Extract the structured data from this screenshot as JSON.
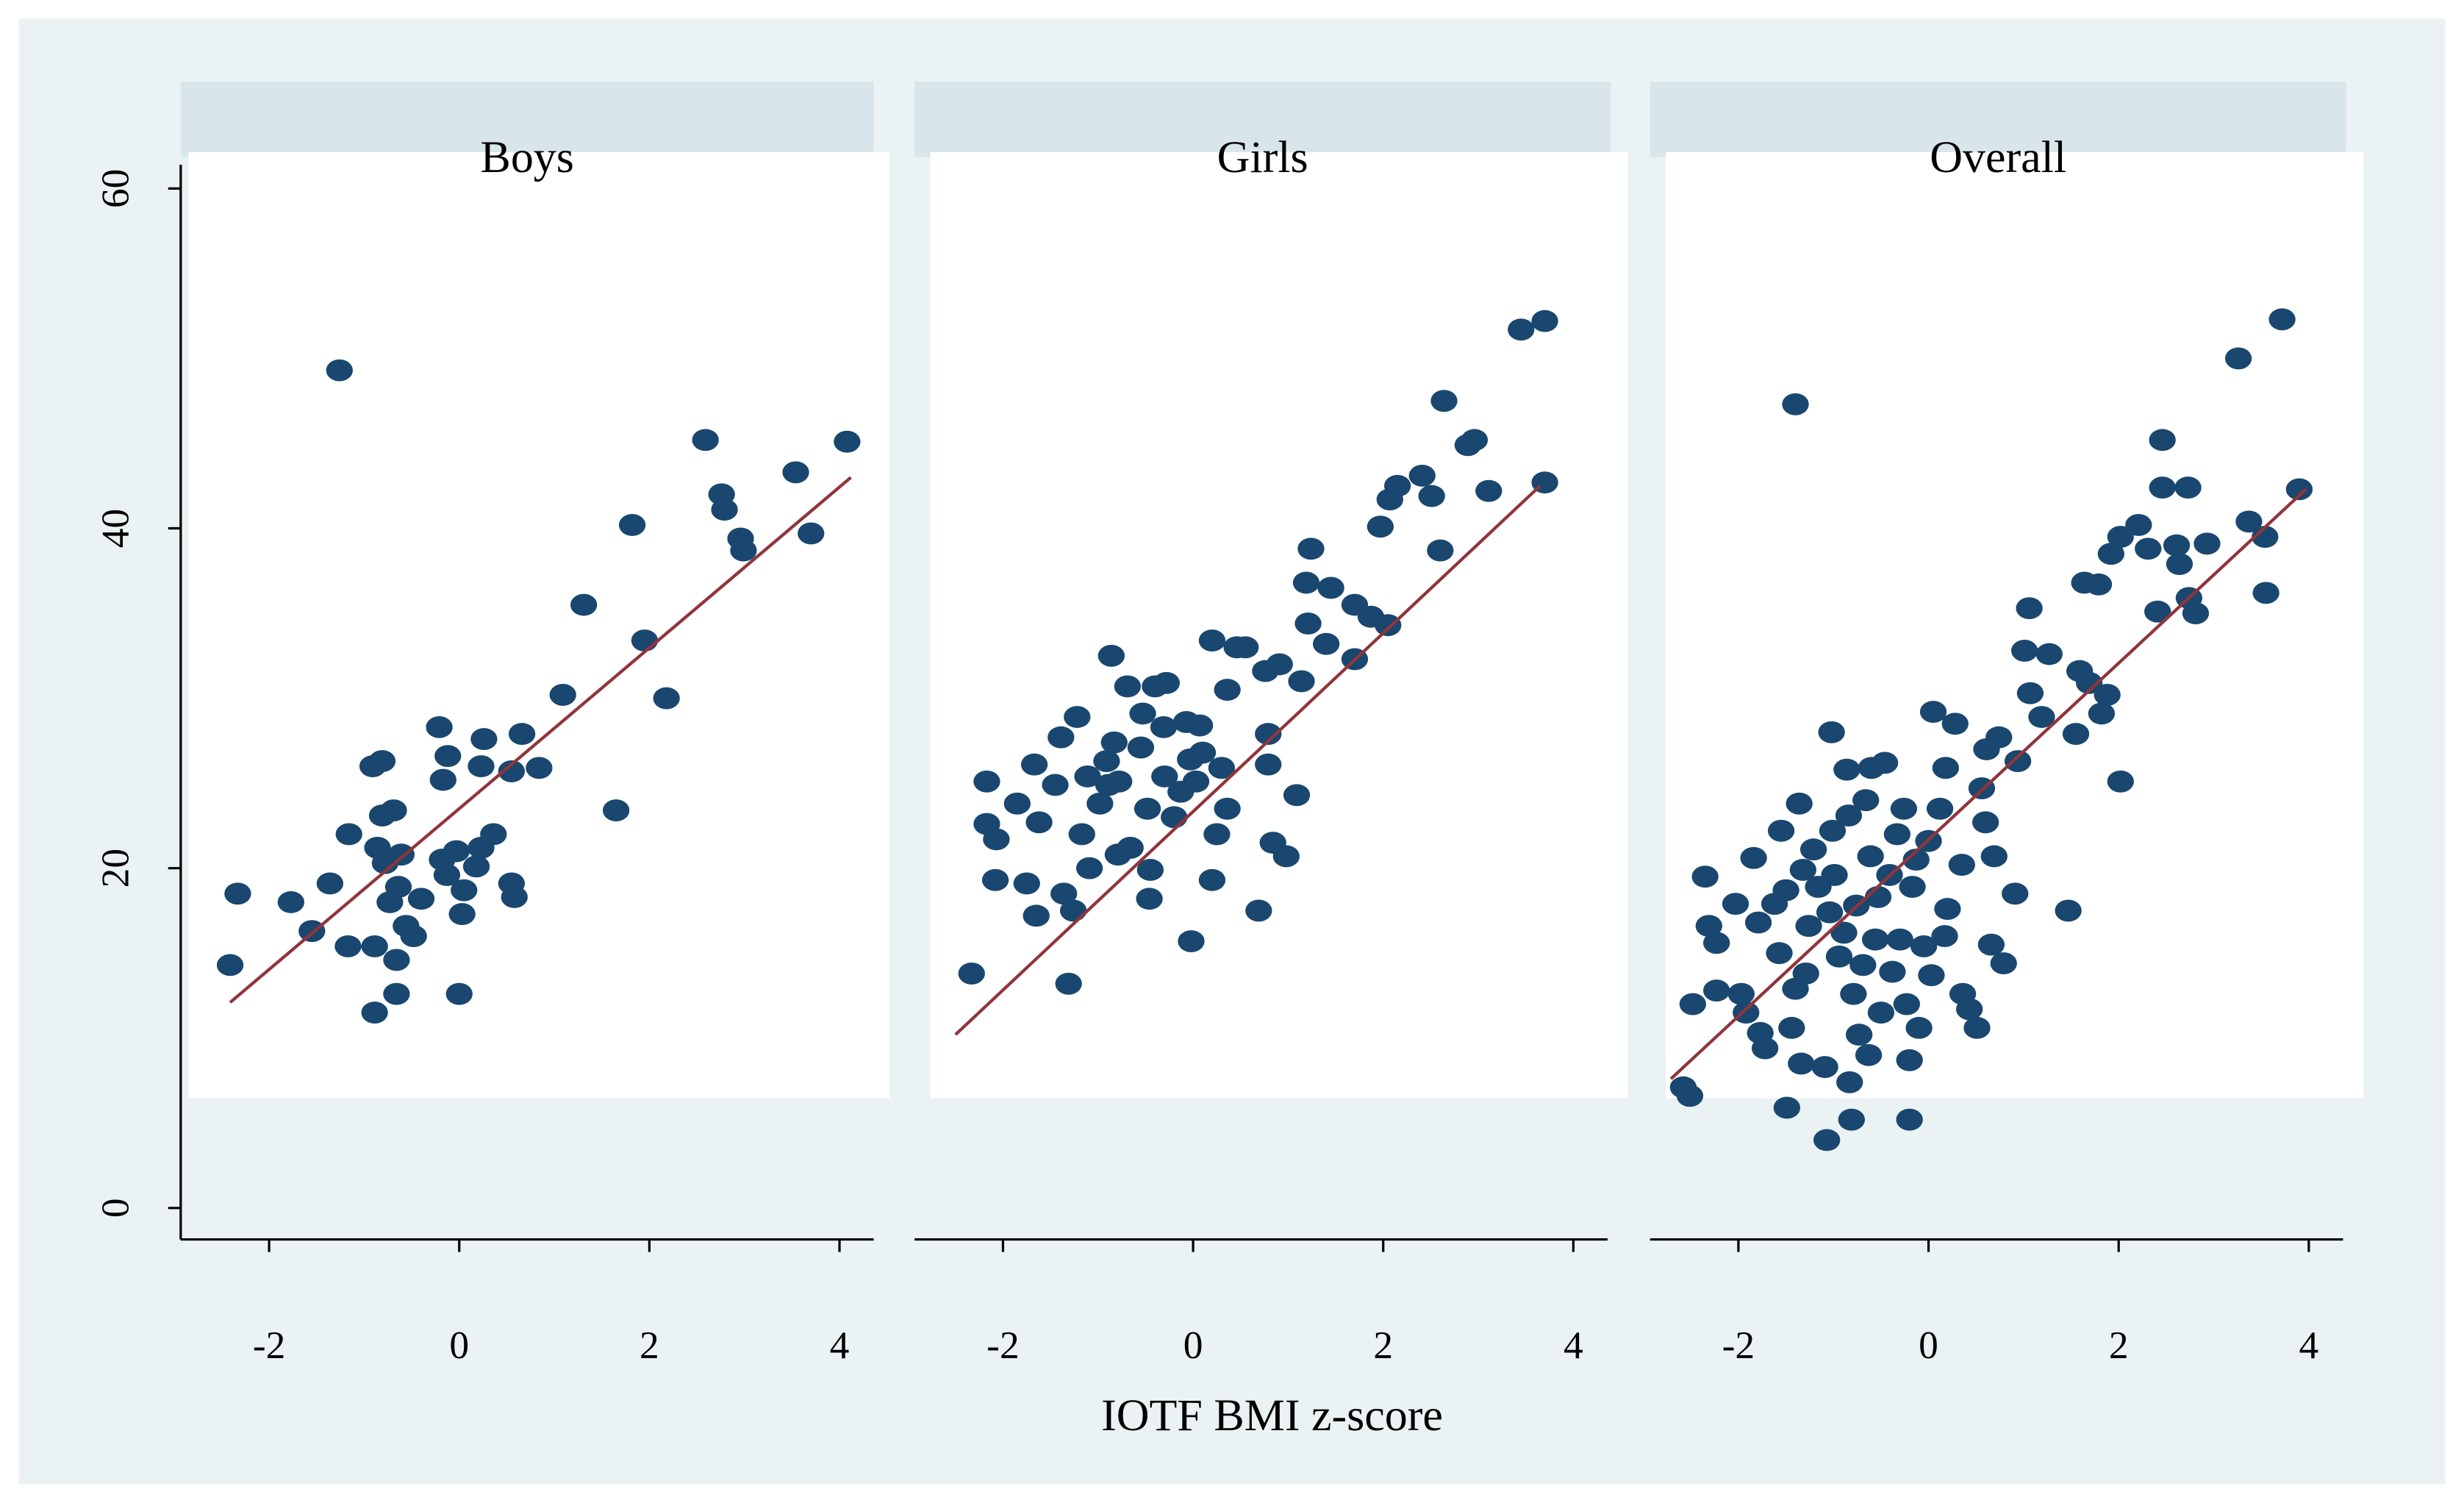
{
  "chart_data": [
    {
      "type": "scatter",
      "title": "Boys",
      "xlim": [
        -2.93,
        4.36
      ],
      "xticks": [
        -2,
        0,
        2,
        4
      ],
      "ylim": [
        -1.85,
        61.4
      ],
      "yticks": [
        0,
        20,
        40,
        60
      ],
      "series": [
        {
          "color": "#1a476f",
          "x": [
            -2.41,
            -2.33,
            -1.77,
            -1.55,
            -1.36,
            -1.26,
            -1.17,
            -1.16,
            -0.91,
            -0.81,
            -0.89,
            -0.89,
            -0.86,
            -0.81,
            -0.78,
            -0.73,
            -0.69,
            -0.66,
            -0.66,
            -0.64,
            -0.61,
            -0.56,
            -0.48,
            -0.4,
            -0.21,
            -0.17,
            -0.12,
            -0.18,
            -0.13,
            -0.03,
            0,
            0.03,
            0.05,
            0.18,
            0.23,
            0.23,
            0.26,
            0.36,
            0.55,
            0.55,
            0.58,
            0.66,
            0.84,
            1.09,
            1.31,
            1.65,
            1.82,
            1.95,
            2.18,
            2.59,
            2.76,
            2.79,
            2.96,
            2.99,
            3.54,
            3.7,
            4.08
          ],
          "values": [
            14.3,
            18.5,
            18.0,
            16.3,
            19.1,
            49.3,
            15.4,
            22.0,
            26.0,
            26.3,
            11.5,
            15.4,
            21.2,
            23.1,
            20.3,
            18.0,
            23.4,
            14.6,
            12.6,
            18.9,
            20.8,
            16.6,
            16.0,
            18.2,
            28.3,
            25.2,
            26.6,
            20.5,
            19.6,
            21.0,
            12.6,
            17.3,
            18.7,
            20.1,
            21.2,
            26.0,
            27.6,
            22.0,
            25.7,
            19.1,
            18.3,
            27.9,
            25.9,
            30.2,
            35.5,
            23.4,
            40.2,
            33.4,
            30.0,
            45.2,
            42.0,
            41.1,
            39.4,
            38.7,
            43.3,
            39.7,
            45.1
          ]
        }
      ],
      "fit": {
        "color": "#90353b",
        "x": [
          -2.41,
          4.12
        ],
        "values": [
          12.1,
          43.0
        ]
      }
    },
    {
      "type": "scatter",
      "title": "Girls",
      "xlabel": "IOTF BMI z-score",
      "xlim": [
        -2.93,
        4.36
      ],
      "xticks": [
        -2,
        0,
        2,
        4
      ],
      "ylim": [
        -1.85,
        61.4
      ],
      "series": [
        {
          "color": "#1a476f",
          "x": [
            -2.33,
            -2.17,
            -2.17,
            -2.07,
            -2.08,
            -1.85,
            -1.75,
            -1.67,
            -1.65,
            -1.62,
            -1.45,
            -1.39,
            -1.36,
            -1.31,
            -1.26,
            -1.22,
            -1.17,
            -1.11,
            -1.09,
            -0.98,
            -0.91,
            -0.89,
            -0.86,
            -0.83,
            -0.79,
            -0.78,
            -0.69,
            -0.66,
            -0.55,
            -0.53,
            -0.48,
            -0.46,
            -0.45,
            -0.4,
            -0.31,
            -0.3,
            -0.28,
            -0.2,
            -0.13,
            -0.07,
            -0.03,
            -0.02,
            0.03,
            0.07,
            0.1,
            0.2,
            0.25,
            0.2,
            0.3,
            0.36,
            0.36,
            0.46,
            0.55,
            0.69,
            0.76,
            0.79,
            0.79,
            0.84,
            0.91,
            0.98,
            1.09,
            1.14,
            1.19,
            1.21,
            1.24,
            1.4,
            1.45,
            1.7,
            1.7,
            1.87,
            1.97,
            2.05,
            2.07,
            2.15,
            2.41,
            2.51,
            2.6,
            2.64,
            2.89,
            2.96,
            3.11,
            3.45,
            3.7,
            3.7
          ],
          "values": [
            13.8,
            25.1,
            22.6,
            21.7,
            19.3,
            23.8,
            19.1,
            26.1,
            17.2,
            22.7,
            24.9,
            27.7,
            18.5,
            13.2,
            17.5,
            28.9,
            22.0,
            25.4,
            20.0,
            23.8,
            26.3,
            24.9,
            32.5,
            27.4,
            20.8,
            25.1,
            30.7,
            21.2,
            27.1,
            29.1,
            23.5,
            18.2,
            19.9,
            30.7,
            28.3,
            25.4,
            30.9,
            23.0,
            24.5,
            28.6,
            26.4,
            15.7,
            25.1,
            28.4,
            26.8,
            33.4,
            22.0,
            19.3,
            25.9,
            23.5,
            30.5,
            33.0,
            33.0,
            17.5,
            31.6,
            27.9,
            26.1,
            21.5,
            32.0,
            20.7,
            24.3,
            31.0,
            36.8,
            34.4,
            38.8,
            33.2,
            36.5,
            32.3,
            35.5,
            34.8,
            40.1,
            34.3,
            41.7,
            42.5,
            43.1,
            41.9,
            38.7,
            47.5,
            44.9,
            45.2,
            42.2,
            51.7,
            52.2,
            42.7
          ]
        }
      ],
      "fit": {
        "color": "#90353b",
        "x": [
          -2.5,
          3.65
        ],
        "values": [
          10.2,
          42.5
        ]
      }
    },
    {
      "type": "scatter",
      "title": "Overall",
      "xlim": [
        -2.93,
        4.36
      ],
      "xticks": [
        -2,
        0,
        2,
        4
      ],
      "ylim": [
        -1.85,
        61.4
      ],
      "series": [
        {
          "color": "#1a476f",
          "x": [
            -2.58,
            -2.51,
            -2.48,
            -2.35,
            -2.31,
            -2.23,
            -2.23,
            -2.03,
            -1.97,
            -1.92,
            -1.84,
            -1.79,
            -1.77,
            -1.72,
            -1.62,
            -1.57,
            -1.55,
            -1.5,
            -1.49,
            -1.44,
            -1.4,
            -1.4,
            -1.36,
            -1.34,
            -1.32,
            -1.29,
            -1.26,
            -1.21,
            -1.16,
            -1.09,
            -1.07,
            -1.04,
            -1.02,
            -1.01,
            -0.99,
            -0.94,
            -0.89,
            -0.86,
            -0.84,
            -0.83,
            -0.81,
            -0.79,
            -0.76,
            -0.73,
            -0.69,
            -0.66,
            -0.63,
            -0.61,
            -0.6,
            -0.56,
            -0.53,
            -0.5,
            -0.46,
            -0.41,
            -0.38,
            -0.33,
            -0.3,
            -0.26,
            -0.23,
            -0.2,
            -0.2,
            -0.17,
            -0.13,
            -0.1,
            -0.05,
            0,
            0.03,
            0.05,
            0.12,
            0.17,
            0.18,
            0.2,
            0.28,
            0.35,
            0.36,
            0.43,
            0.51,
            0.56,
            0.6,
            0.61,
            0.66,
            0.69,
            0.74,
            0.79,
            0.91,
            0.94,
            1.01,
            1.06,
            1.07,
            1.19,
            1.27,
            1.47,
            1.55,
            1.59,
            1.64,
            1.69,
            1.79,
            1.82,
            1.88,
            1.92,
            2.02,
            2.02,
            2.21,
            2.31,
            2.41,
            2.46,
            2.46,
            2.61,
            2.64,
            2.73,
            2.74,
            2.81,
            2.93,
            3.26,
            3.37,
            3.54,
            3.55,
            3.72,
            3.9
          ],
          "values": [
            7.1,
            6.6,
            12.0,
            19.5,
            16.6,
            15.6,
            12.8,
            17.9,
            12.6,
            11.5,
            20.6,
            16.8,
            10.3,
            9.4,
            17.9,
            15.0,
            22.2,
            18.7,
            5.9,
            10.6,
            47.3,
            12.9,
            23.8,
            8.5,
            19.9,
            13.8,
            16.6,
            21.1,
            18.9,
            8.3,
            4.0,
            17.4,
            28.0,
            22.2,
            19.6,
            14.8,
            16.2,
            25.8,
            23.1,
            7.4,
            5.2,
            12.6,
            17.8,
            10.2,
            14.3,
            24.0,
            9.0,
            20.7,
            25.9,
            15.8,
            18.3,
            11.5,
            26.2,
            19.6,
            13.9,
            22.0,
            15.8,
            23.5,
            12.0,
            8.7,
            5.2,
            18.9,
            20.5,
            10.6,
            15.4,
            21.6,
            13.7,
            29.2,
            23.5,
            16.0,
            25.9,
            17.6,
            28.5,
            20.2,
            12.6,
            11.7,
            10.6,
            24.7,
            22.7,
            27.0,
            15.5,
            20.7,
            27.7,
            14.4,
            18.5,
            26.3,
            32.8,
            35.3,
            30.3,
            28.9,
            32.6,
            17.5,
            27.9,
            31.6,
            36.8,
            30.9,
            36.7,
            29.1,
            30.2,
            38.5,
            25.1,
            39.5,
            40.2,
            38.8,
            35.1,
            45.2,
            42.4,
            39.0,
            37.9,
            42.4,
            35.9,
            35.0,
            39.1,
            50.0,
            40.4,
            39.5,
            36.2,
            52.3,
            42.3
          ]
        }
      ],
      "fit": {
        "color": "#90353b",
        "x": [
          -2.71,
          3.97
        ],
        "values": [
          7.6,
          42.3
        ]
      }
    }
  ]
}
